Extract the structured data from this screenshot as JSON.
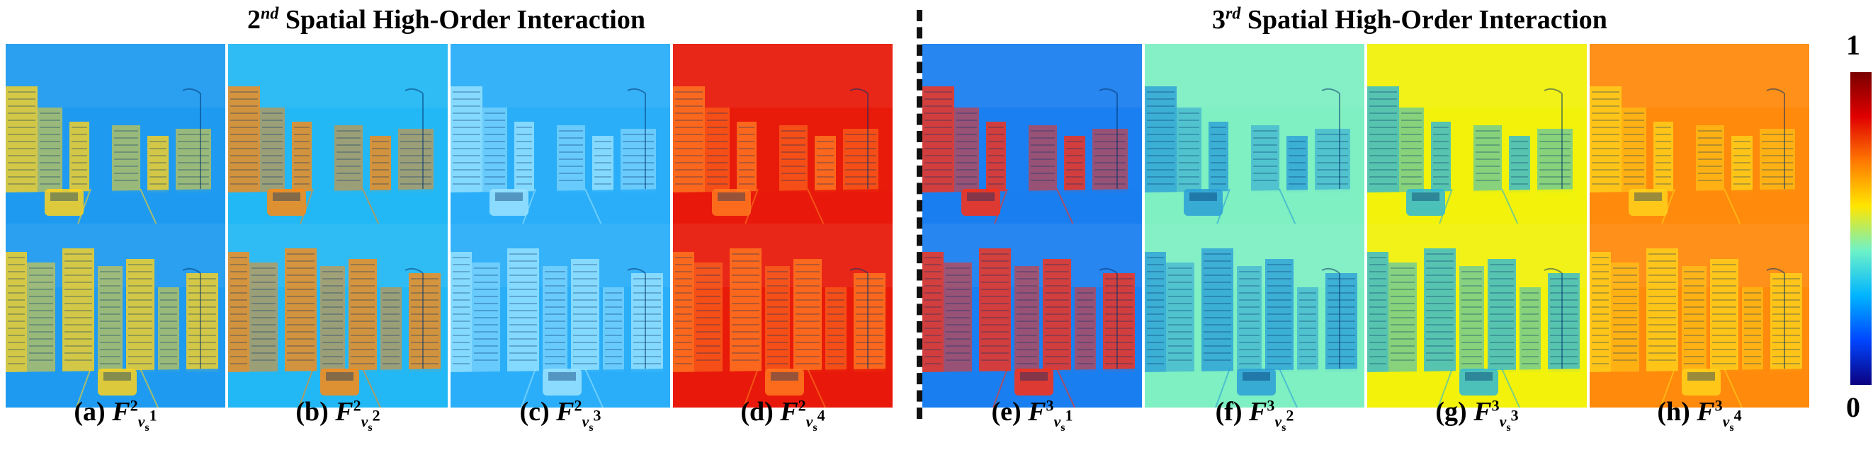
{
  "figure": {
    "left_title": {
      "order": "2",
      "sup": "nd",
      "text": "Spatial High-Order Interaction"
    },
    "right_title": {
      "order": "3",
      "sup": "rd",
      "text": "Spatial High-Order Interaction"
    },
    "colorbar": {
      "max_label": "1",
      "min_label": "0",
      "stops": [
        "#0b0080",
        "#0046ff",
        "#00b4ff",
        "#6df2c9",
        "#ffe600",
        "#ff7a00",
        "#e00000",
        "#7a0000"
      ]
    },
    "panels": [
      {
        "letter": "(a)",
        "sym": "F",
        "sup": "2",
        "sub": "v",
        "sub_sub": "s",
        "sub_sup": "1",
        "tone": "#1e9bf0",
        "accent": "#ffd21c"
      },
      {
        "letter": "(b)",
        "sym": "F",
        "sup": "2",
        "sub": "v",
        "sub_sub": "s",
        "sub_sup": "2",
        "tone": "#22b8f5",
        "accent": "#ff8a10"
      },
      {
        "letter": "(c)",
        "sym": "F",
        "sup": "2",
        "sub": "v",
        "sub_sub": "s",
        "sub_sup": "3",
        "tone": "#2aaef8",
        "accent": "#9be3ff"
      },
      {
        "letter": "(d)",
        "sym": "F",
        "sup": "2",
        "sub": "v",
        "sub_sub": "s",
        "sub_sup": "4",
        "tone": "#e81a0a",
        "accent": "#ff7a20"
      },
      {
        "letter": "(e)",
        "sym": "F",
        "sup": "3",
        "sub": "v",
        "sub_sub": "s",
        "sub_sup": "1",
        "tone": "#1a7ff0",
        "accent": "#ff2e10"
      },
      {
        "letter": "(f)",
        "sym": "F",
        "sup": "3",
        "sub": "v",
        "sub_sub": "s",
        "sub_sup": "2",
        "tone": "#7ef0c2",
        "accent": "#2c9fd8"
      },
      {
        "letter": "(g)",
        "sym": "F",
        "sup": "3",
        "sub": "v",
        "sub_sub": "s",
        "sub_sup": "3",
        "tone": "#f2f20a",
        "accent": "#2fb8d8"
      },
      {
        "letter": "(h)",
        "sym": "F",
        "sup": "3",
        "sub": "v",
        "sub_sub": "s",
        "sub_sup": "4",
        "tone": "#ff8a0c",
        "accent": "#ffd21c"
      }
    ]
  }
}
